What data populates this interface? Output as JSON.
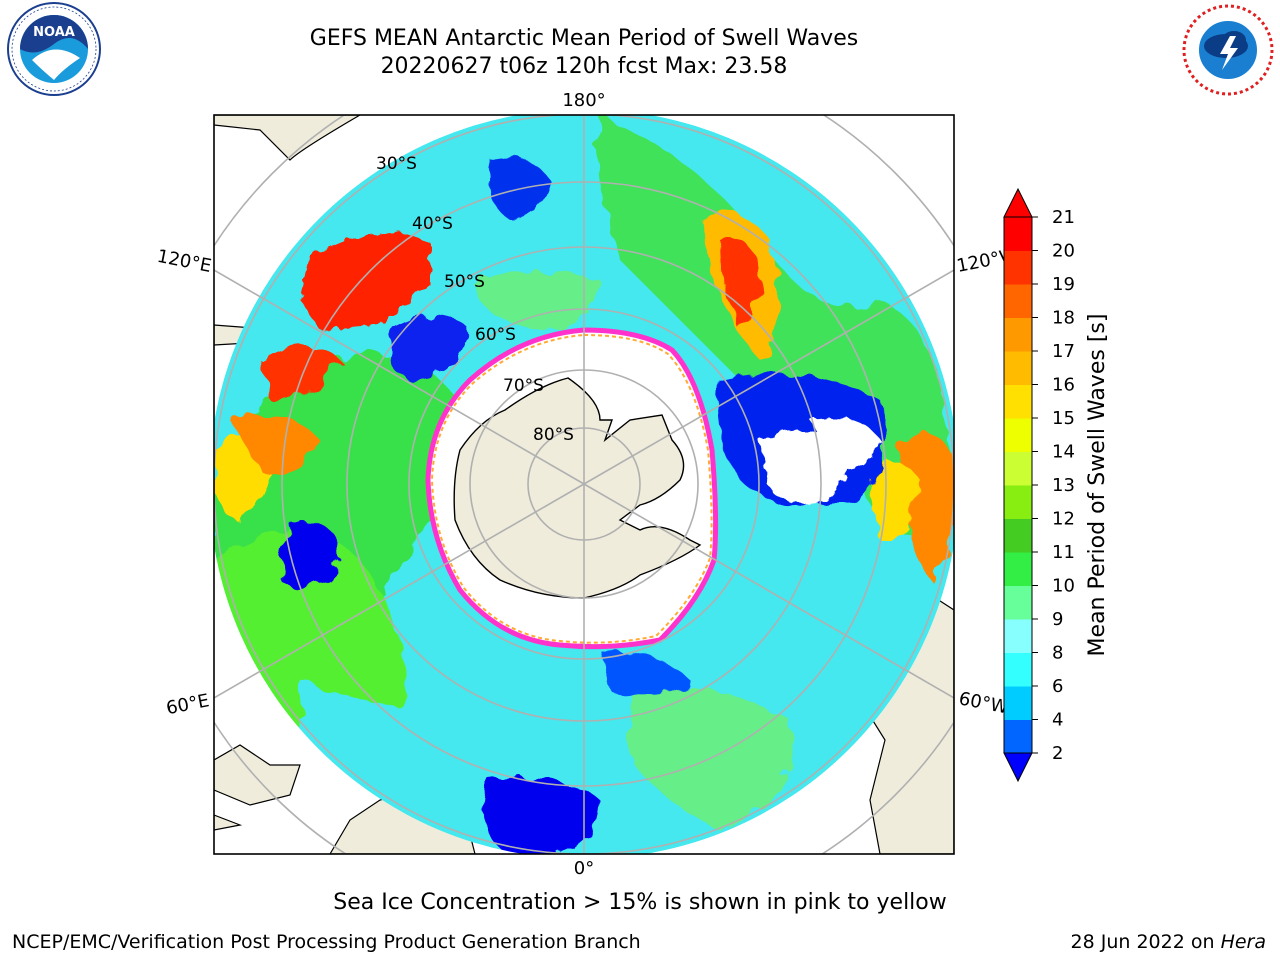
{
  "title_line1": "GEFS MEAN Antarctic Mean Period of Swell Waves",
  "title_line2": "20220627 t06z 120h fcst   Max: 23.58",
  "caption": "Sea Ice Concentration > 15% is shown in pink to yellow",
  "footer_left": "NCEP/EMC/Verification Post Processing Product Generation Branch",
  "footer_date": "28 Jun 2022 on ",
  "footer_host": "Hera",
  "logos": {
    "left": "noaa-logo",
    "right": "nws-logo"
  },
  "map": {
    "projection": "south-polar-stereographic",
    "longitude_labels": {
      "top": "180°",
      "bottom": "0°",
      "upper_left": "120°E",
      "upper_right": "120°W",
      "lower_left": "60°E",
      "lower_right": "60°W"
    },
    "latitude_labels": [
      "30°S",
      "40°S",
      "50°S",
      "60°S",
      "70°S",
      "80°S"
    ],
    "colors": {
      "land": "#efecdc",
      "ice_free_white": "#ffffff",
      "ice_edge": "#ff33cc",
      "grid": "#b0b0b0"
    }
  },
  "colorbar": {
    "label": "Mean Period of Swell Waves [s]",
    "ticks": [
      "2",
      "4",
      "6",
      "8",
      "9",
      "10",
      "11",
      "12",
      "13",
      "14",
      "15",
      "16",
      "17",
      "18",
      "19",
      "20",
      "21"
    ],
    "colors": [
      "#0000ff",
      "#0066ff",
      "#00ccff",
      "#33ffff",
      "#88ffff",
      "#66ff99",
      "#33ee44",
      "#44cc22",
      "#88ee11",
      "#ccff33",
      "#eeff00",
      "#ffe000",
      "#ffbb00",
      "#ff9900",
      "#ff6600",
      "#ff3300",
      "#ff0000"
    ],
    "extend": "both"
  }
}
